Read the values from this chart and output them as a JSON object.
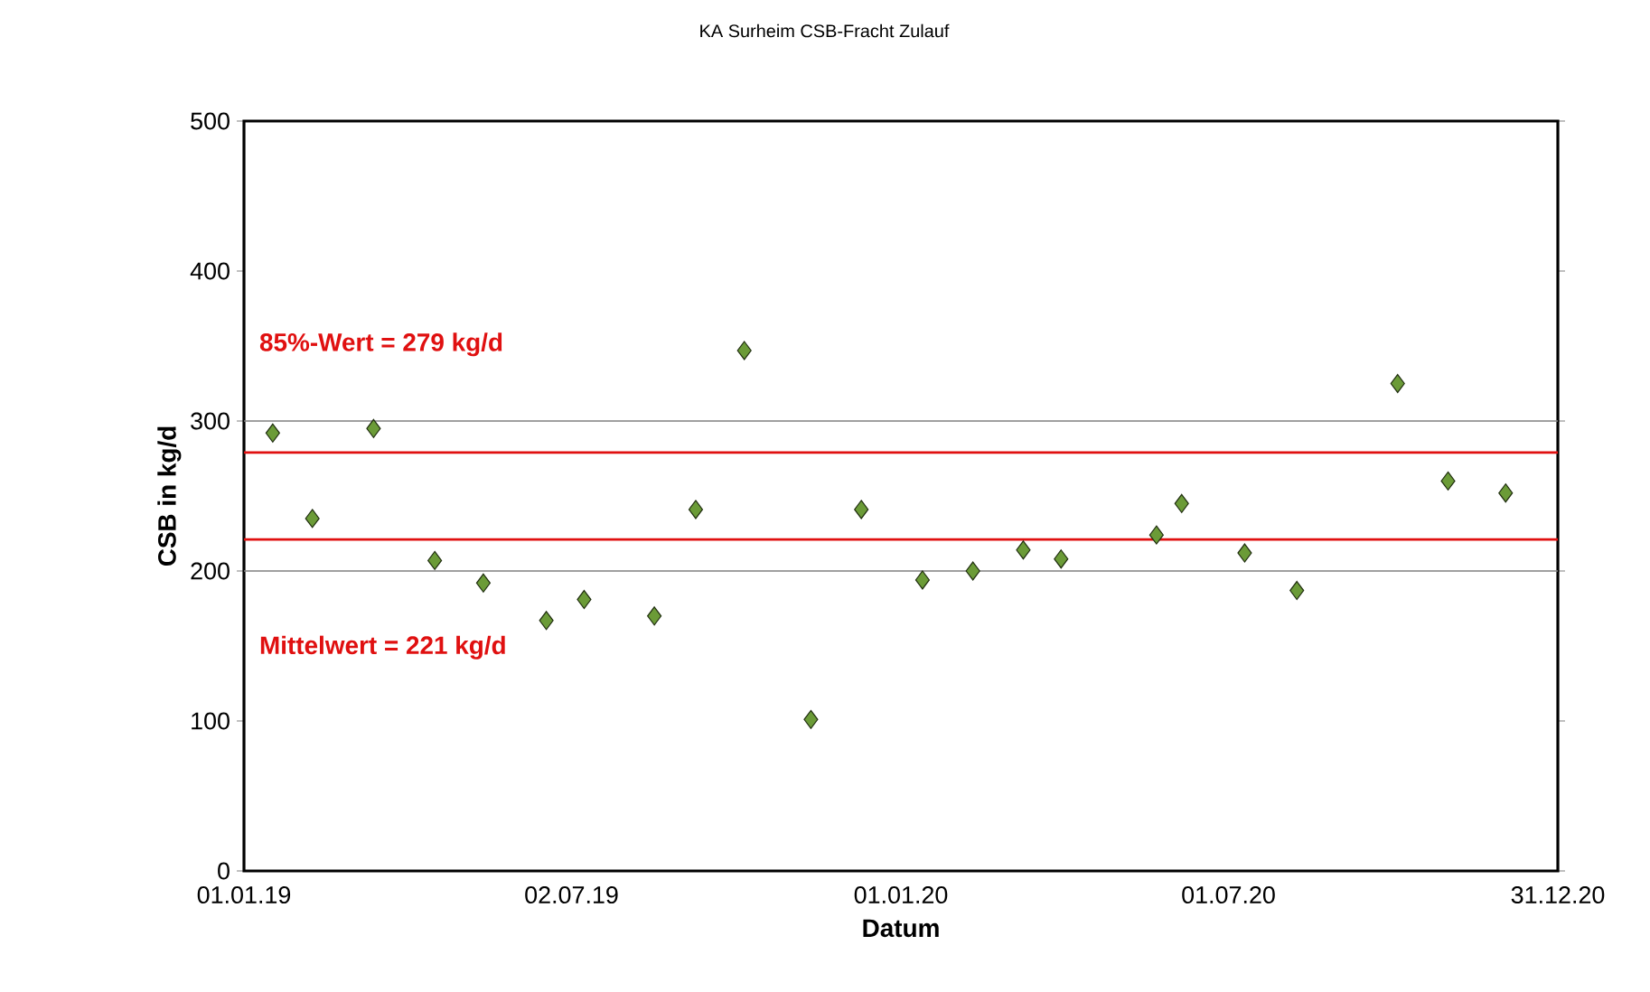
{
  "chart_data": {
    "type": "scatter",
    "title": "KA Surheim CSB-Fracht Zulauf",
    "xlabel": "Datum",
    "ylabel": "CSB in kg/d",
    "x": [
      "2019-01-17",
      "2019-02-08",
      "2019-03-14",
      "2019-04-17",
      "2019-05-14",
      "2019-06-18",
      "2019-07-09",
      "2019-08-17",
      "2019-09-09",
      "2019-10-06",
      "2019-11-12",
      "2019-12-10",
      "2020-01-13",
      "2020-02-10",
      "2020-03-09",
      "2020-03-30",
      "2020-05-22",
      "2020-06-05",
      "2020-07-10",
      "2020-08-08",
      "2020-10-03",
      "2020-10-31",
      "2020-12-02"
    ],
    "values": [
      292,
      235,
      295,
      207,
      192,
      167,
      181,
      170,
      241,
      347,
      101,
      241,
      194,
      200,
      214,
      208,
      224,
      245,
      212,
      187,
      325,
      260,
      252
    ],
    "color": "#6b9b37",
    "marker": "diamond",
    "xlim": [
      "2019-01-01",
      "2020-12-31"
    ],
    "xticks": [
      {
        "value": "2019-01-01",
        "label": "01.01.19"
      },
      {
        "value": "2019-07-02",
        "label": "02.07.19"
      },
      {
        "value": "2020-01-01",
        "label": "01.01.20"
      },
      {
        "value": "2020-07-01",
        "label": "01.07.20"
      },
      {
        "value": "2020-12-31",
        "label": "31.12.20"
      }
    ],
    "ylim": [
      0,
      500
    ],
    "yticks": [
      0,
      100,
      200,
      300,
      400,
      500
    ],
    "ref_lines": [
      {
        "axis": "y",
        "value": 300,
        "color": "#808080"
      },
      {
        "axis": "y",
        "value": 200,
        "color": "#808080"
      },
      {
        "axis": "y",
        "value": 279,
        "label": "85%-Wert = 279 kg/d",
        "color": "#e01010"
      },
      {
        "axis": "y",
        "value": 221,
        "label": "Mittelwert = 221 kg/d",
        "color": "#e01010"
      }
    ]
  }
}
